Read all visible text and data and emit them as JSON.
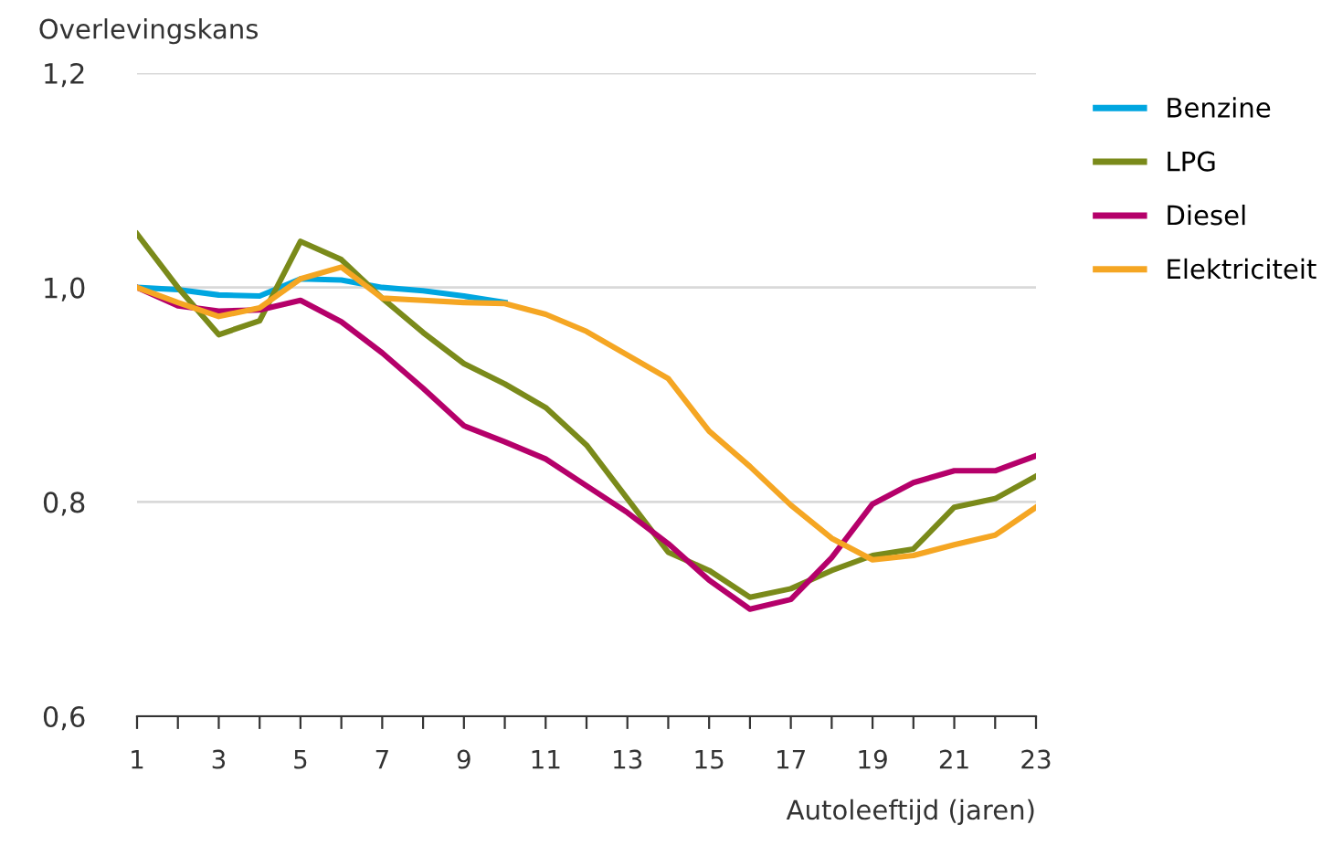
{
  "chart_data": {
    "type": "line",
    "ylabel": "Overlevingskans",
    "xlabel": "Autoleeftijd (jaren)",
    "x": [
      1,
      2,
      3,
      4,
      5,
      6,
      7,
      8,
      9,
      10,
      11,
      12,
      13,
      14,
      15,
      16,
      17,
      18,
      19,
      20,
      21,
      22,
      23
    ],
    "series": [
      {
        "name": "Benzine",
        "color": "#00a6e0",
        "values": [
          1.0,
          0.998,
          0.993,
          0.992,
          1.008,
          1.007,
          1.0,
          0.997,
          0.992,
          0.986,
          null,
          null,
          null,
          null,
          null,
          null,
          null,
          null,
          null,
          null,
          null,
          null,
          null
        ]
      },
      {
        "name": "LPG",
        "color": "#7a8a1a",
        "values": [
          1.05,
          1.0,
          0.956,
          0.969,
          1.043,
          1.026,
          0.99,
          0.958,
          0.929,
          0.91,
          0.888,
          0.853,
          0.803,
          0.753,
          0.736,
          0.711,
          0.719,
          0.736,
          0.75,
          0.756,
          0.795,
          0.803,
          0.824
        ]
      },
      {
        "name": "Diesel",
        "color": "#b5006a",
        "values": [
          1.0,
          0.983,
          0.978,
          0.979,
          0.988,
          0.968,
          0.939,
          0.906,
          0.871,
          0.856,
          0.84,
          0.815,
          0.79,
          0.761,
          0.727,
          0.7,
          0.709,
          0.748,
          0.798,
          0.818,
          0.829,
          0.829,
          0.843
        ]
      },
      {
        "name": "Elektriciteit",
        "color": "#f5a623",
        "values": [
          1.0,
          0.986,
          0.973,
          0.981,
          1.008,
          1.019,
          0.99,
          0.988,
          0.986,
          0.985,
          0.975,
          0.959,
          0.937,
          0.915,
          0.866,
          0.833,
          0.797,
          0.766,
          0.746,
          0.75,
          0.76,
          0.769,
          0.795
        ]
      }
    ],
    "xlim": [
      1,
      23
    ],
    "xticks": [
      1,
      {
        "value": 2,
        "label": null
      },
      3,
      {
        "value": 4,
        "label": null
      },
      5,
      {
        "value": 6,
        "label": null
      },
      7,
      {
        "value": 8,
        "label": null
      },
      9,
      {
        "value": 10,
        "label": null
      },
      11,
      {
        "value": 12,
        "label": null
      },
      13,
      {
        "value": 14,
        "label": null
      },
      15,
      {
        "value": 16,
        "label": null
      },
      17,
      {
        "value": 18,
        "label": null
      },
      19,
      {
        "value": 20,
        "label": null
      },
      21,
      {
        "value": 22,
        "label": null
      },
      23
    ],
    "ylim": [
      0.6,
      1.2
    ],
    "yticks": [
      {
        "value": 0.6,
        "label": "0,6"
      },
      {
        "value": 0.8,
        "label": "0,8"
      },
      {
        "value": 1.0,
        "label": "1,0"
      },
      {
        "value": 1.2,
        "label": "1,2"
      }
    ],
    "grid": "y",
    "legend": "top right",
    "marker": "none",
    "line_style": "solid"
  }
}
